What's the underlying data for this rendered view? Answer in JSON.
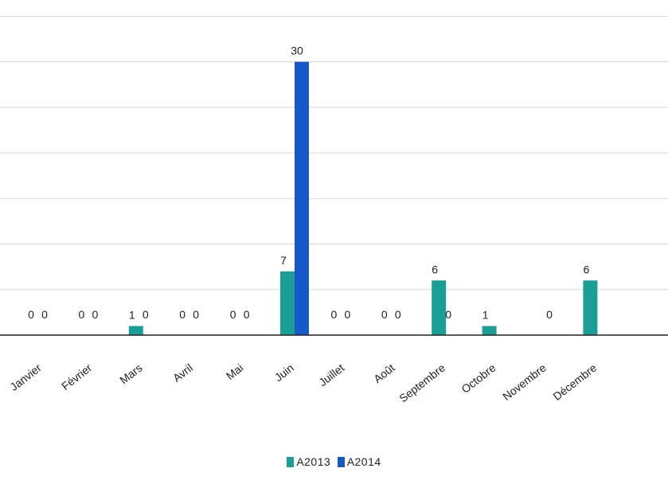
{
  "chart_data": {
    "type": "bar",
    "categories": [
      "Janvier",
      "Février",
      "Mars",
      "Avril",
      "Mai",
      "Juin",
      "Juillet",
      "Août",
      "Septembre",
      "Octobre",
      "Novembre",
      "Décembre"
    ],
    "series": [
      {
        "name": "A2013",
        "color": "#1a9e96",
        "values": [
          0,
          0,
          1,
          0,
          0,
          7,
          0,
          0,
          6,
          1,
          null,
          6
        ],
        "labels": [
          "0",
          "0",
          "1",
          "0",
          "0",
          "7",
          "0",
          "0",
          "6",
          "1",
          "",
          "6"
        ]
      },
      {
        "name": "A2014",
        "color": "#1459c7",
        "values": [
          0,
          0,
          0,
          0,
          0,
          30,
          0,
          0,
          0,
          null,
          0,
          null
        ],
        "labels": [
          "0",
          "0",
          "0",
          "0",
          "0",
          "30",
          "0",
          "0",
          "0",
          "",
          "0",
          ""
        ]
      }
    ],
    "ylim": [
      0,
      36
    ],
    "grid": true,
    "legend": "bottom-center"
  }
}
